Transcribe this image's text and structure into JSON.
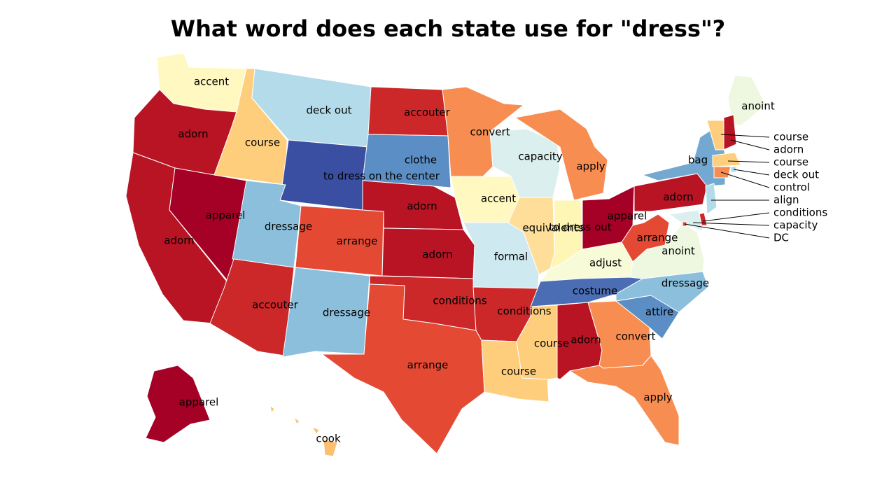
{
  "title": "What word does each state use for \"dress\"?",
  "palette": {
    "dark_red": "#a50026",
    "red": "#b81424",
    "red2": "#cc2729",
    "red_orange": "#e34933",
    "orange": "#f88d52",
    "light_orange": "#fdbf6f",
    "pale_orange": "#fece7c",
    "yellow": "#fef6b5",
    "pale_yellow": "#fff8c0",
    "cream": "#f7fbd8",
    "pale_green": "#eef7df",
    "pale_cyan": "#dbf0ee",
    "light_cyan": "#cfe9f0",
    "light_blue": "#b3dbe9",
    "sky_blue": "#8bbfdc",
    "blue": "#73a9d0",
    "mid_blue": "#5b8ec4",
    "dark_blue": "#4a6db3",
    "deep_blue": "#3a4fa2"
  },
  "states": [
    {
      "code": "WA",
      "word": "accent",
      "color": "#fff8c0"
    },
    {
      "code": "OR",
      "word": "adorn",
      "color": "#b81424"
    },
    {
      "code": "CA",
      "word": "adorn",
      "color": "#b81424"
    },
    {
      "code": "NV",
      "word": "apparel",
      "color": "#a50026"
    },
    {
      "code": "ID",
      "word": "course",
      "color": "#fece7c"
    },
    {
      "code": "MT",
      "word": "deck out",
      "color": "#b3dbe9"
    },
    {
      "code": "WY",
      "word": "to dress on the center",
      "color": "#3a4fa2"
    },
    {
      "code": "UT",
      "word": "dressage",
      "color": "#8bbfdc"
    },
    {
      "code": "AZ",
      "word": "accouter",
      "color": "#cc2729"
    },
    {
      "code": "CO",
      "word": "arrange",
      "color": "#e34933"
    },
    {
      "code": "NM",
      "word": "dressage",
      "color": "#8bbfdc"
    },
    {
      "code": "ND",
      "word": "accouter",
      "color": "#cc2729"
    },
    {
      "code": "SD",
      "word": "clothe",
      "color": "#5b8ec4"
    },
    {
      "code": "NE",
      "word": "adorn",
      "color": "#b81424"
    },
    {
      "code": "KS",
      "word": "adorn",
      "color": "#b81424"
    },
    {
      "code": "OK",
      "word": "conditions",
      "color": "#cc2729"
    },
    {
      "code": "TX",
      "word": "arrange",
      "color": "#e34933"
    },
    {
      "code": "MN",
      "word": "convert",
      "color": "#f88d52"
    },
    {
      "code": "IA",
      "word": "accent",
      "color": "#fff8c0"
    },
    {
      "code": "MO",
      "word": "formal",
      "color": "#cfe9f0"
    },
    {
      "code": "AR",
      "word": "conditions",
      "color": "#cc2729"
    },
    {
      "code": "LA",
      "word": "course",
      "color": "#fece7c"
    },
    {
      "code": "WI",
      "word": "capacity",
      "color": "#dbf0ee"
    },
    {
      "code": "IL",
      "word": "equivalents",
      "color": "#fede99"
    },
    {
      "code": "MI",
      "word": "apply",
      "color": "#f88d52"
    },
    {
      "code": "IN",
      "word": "to dress out",
      "color": "#fef6b5"
    },
    {
      "code": "OH",
      "word": "apparel",
      "color": "#a50026"
    },
    {
      "code": "KY",
      "word": "adjust",
      "color": "#f7fbd8"
    },
    {
      "code": "TN",
      "word": "costume",
      "color": "#4a6db3"
    },
    {
      "code": "MS",
      "word": "course",
      "color": "#fece7c"
    },
    {
      "code": "AL",
      "word": "adorn",
      "color": "#b81424"
    },
    {
      "code": "GA",
      "word": "convert",
      "color": "#f88d52"
    },
    {
      "code": "FL",
      "word": "apply",
      "color": "#f88d52"
    },
    {
      "code": "SC",
      "word": "attire",
      "color": "#5b8ec4"
    },
    {
      "code": "NC",
      "word": "dressage",
      "color": "#8bbfdc"
    },
    {
      "code": "VA",
      "word": "anoint",
      "color": "#eef7df"
    },
    {
      "code": "WV",
      "word": "arrange",
      "color": "#e34933"
    },
    {
      "code": "PA",
      "word": "adorn",
      "color": "#b81424"
    },
    {
      "code": "NY",
      "word": "bag",
      "color": "#73a9d0"
    },
    {
      "code": "ME",
      "word": "anoint",
      "color": "#eef7df"
    },
    {
      "code": "AK",
      "word": "apparel",
      "color": "#a50026"
    },
    {
      "code": "HI",
      "word": "cook",
      "color": "#fdbf6f"
    },
    {
      "code": "VT",
      "word": "course",
      "color": "#fece7c"
    },
    {
      "code": "NH",
      "word": "adorn",
      "color": "#b81424"
    },
    {
      "code": "MA",
      "word": "course",
      "color": "#fece7c"
    },
    {
      "code": "RI",
      "word": "deck out",
      "color": "#b3dbe9"
    },
    {
      "code": "CT",
      "word": "control",
      "color": "#f88d52"
    },
    {
      "code": "NJ",
      "word": "align",
      "color": "#b3dbe9"
    },
    {
      "code": "DE",
      "word": "conditions",
      "color": "#cc2729"
    },
    {
      "code": "MD",
      "word": "capacity",
      "color": "#dbf0ee"
    },
    {
      "code": "DC",
      "word": "DC",
      "color": "#e34933"
    }
  ],
  "callouts": [
    {
      "state": "VT",
      "label": "course"
    },
    {
      "state": "NH",
      "label": "adorn"
    },
    {
      "state": "MA",
      "label": "course"
    },
    {
      "state": "RI",
      "label": "deck out"
    },
    {
      "state": "CT",
      "label": "control"
    },
    {
      "state": "NJ",
      "label": "align"
    },
    {
      "state": "DE",
      "label": "conditions"
    },
    {
      "state": "MD",
      "label": "capacity"
    },
    {
      "state": "DC",
      "label": "DC"
    }
  ]
}
